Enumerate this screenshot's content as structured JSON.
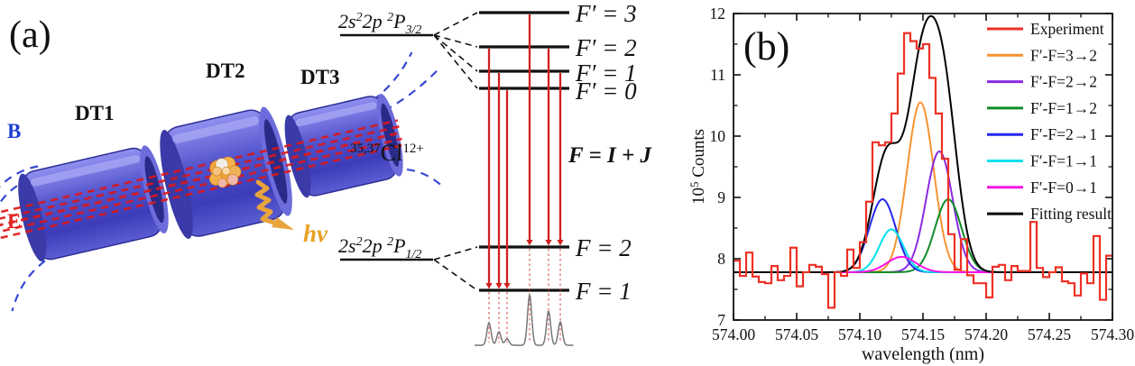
{
  "panel_a": {
    "label": "(a)",
    "drift_tube_labels": [
      "DT1",
      "DT2",
      "DT3"
    ],
    "b_field_label": "B",
    "e_field_label": "E",
    "photon_label": "hν",
    "ion": {
      "mass_numbers": "35,37",
      "element": "Cl",
      "charge": "12+"
    },
    "upper_term": {
      "t1": "2s",
      "s1": "2",
      "t2": "2p ",
      "s2": "2",
      "t3": "P",
      "s3": "3/2"
    },
    "lower_term": {
      "t1": "2s",
      "s1": "2",
      "t2": "2p ",
      "s2": "2",
      "t3": "P",
      "s3": "1/2"
    },
    "coupling_formula": "F = I + J",
    "upper_levels": [
      {
        "label": "F′ = 3"
      },
      {
        "label": "F′ = 2"
      },
      {
        "label": "F′ = 1"
      },
      {
        "label": "F′ = 0"
      }
    ],
    "lower_levels": [
      {
        "label": "F = 2"
      },
      {
        "label": "F = 1"
      }
    ],
    "transitions": [
      {
        "upper": 1,
        "lower": 1,
        "name": "F′=2 → F=1"
      },
      {
        "upper": 2,
        "lower": 1,
        "name": "F′=1 → F=1"
      },
      {
        "upper": 3,
        "lower": 1,
        "name": "F′=0 → F=1"
      },
      {
        "upper": 0,
        "lower": 0,
        "name": "F′=3 → F=2"
      },
      {
        "upper": 1,
        "lower": 0,
        "name": "F′=2 → F=2"
      },
      {
        "upper": 2,
        "lower": 0,
        "name": "F′=1 → F=2"
      }
    ],
    "mini_spectrum_peak_heights": [
      25,
      15,
      7,
      56,
      38,
      26
    ],
    "colors": {
      "tube_blue": "#5252cc",
      "beam_red": "#e01616",
      "field_blue": "#2b3fd0",
      "photon_amber": "#e8a43c"
    }
  },
  "panel_b": {
    "label": "(b)"
  },
  "chart_data": {
    "type": "line",
    "title": "",
    "xlabel": "wavelength (nm)",
    "ylabel_parts": {
      "base": "10",
      "exp": "5",
      "unit": " Counts"
    },
    "xlim": [
      574.0,
      574.3
    ],
    "ylim": [
      7,
      12
    ],
    "x_ticks": [
      "574.00",
      "574.05",
      "574.10",
      "574.15",
      "574.20",
      "574.25",
      "574.30"
    ],
    "y_ticks": [
      "7",
      "8",
      "9",
      "10",
      "11",
      "12"
    ],
    "grid": false,
    "legend_position": "top-right",
    "baseline_counts": 7.78,
    "histogram": {
      "name": "Experiment",
      "color": "#ed3124",
      "bin_start_nm": 574.0,
      "bin_width_nm": 0.005,
      "values": [
        7.97,
        7.72,
        8.1,
        7.71,
        7.62,
        7.6,
        7.88,
        7.65,
        7.72,
        8.18,
        7.55,
        7.78,
        7.9,
        7.87,
        7.75,
        7.2,
        7.78,
        7.72,
        8.15,
        7.85,
        8.27,
        8.93,
        9.9,
        9.85,
        9.9,
        10.37,
        11.02,
        11.68,
        11.55,
        11.43,
        11.5,
        10.95,
        10.37,
        9.63,
        8.4,
        7.82,
        8.32,
        7.73,
        7.6,
        7.6,
        7.37,
        7.87,
        7.9,
        7.65,
        7.88,
        7.8,
        7.8,
        8.6,
        7.85,
        7.7,
        7.78,
        7.86,
        7.63,
        7.6,
        7.4,
        7.76,
        7.6,
        8.37,
        7.33,
        8.05
      ]
    },
    "components": [
      {
        "name": "F′-F=3→2",
        "color": "#f79431",
        "center_nm": 574.148,
        "peak_counts": 10.55,
        "sigma_nm": 0.0105
      },
      {
        "name": "F′-F=2→2",
        "color": "#8a2be2",
        "center_nm": 574.163,
        "peak_counts": 9.75,
        "sigma_nm": 0.0105
      },
      {
        "name": "F′-F=1→2",
        "color": "#108c28",
        "center_nm": 574.17,
        "peak_counts": 8.97,
        "sigma_nm": 0.0105
      },
      {
        "name": "F′-F=2→1",
        "color": "#2626ee",
        "center_nm": 574.118,
        "peak_counts": 8.97,
        "sigma_nm": 0.0105
      },
      {
        "name": "F′-F=1→1",
        "color": "#00e0ee",
        "center_nm": 574.125,
        "peak_counts": 8.48,
        "sigma_nm": 0.0095
      },
      {
        "name": "F′-F=0→1",
        "color": "#f912e9",
        "center_nm": 574.133,
        "peak_counts": 8.03,
        "sigma_nm": 0.0115
      }
    ],
    "fit": {
      "name": "Fitting result",
      "color": "#000000",
      "is_sum_of_components_plus_baseline": true
    },
    "legend": [
      {
        "label": "Experiment",
        "color": "#ed3124"
      },
      {
        "label": "F′-F=3→2",
        "color": "#f79431"
      },
      {
        "label": "F′-F=2→2",
        "color": "#8a2be2"
      },
      {
        "label": "F′-F=1→2",
        "color": "#108c28"
      },
      {
        "label": "F′-F=2→1",
        "color": "#2626ee"
      },
      {
        "label": "F′-F=1→1",
        "color": "#00e0ee"
      },
      {
        "label": "F′-F=0→1",
        "color": "#f912e9"
      },
      {
        "label": "Fitting result",
        "color": "#000000"
      }
    ]
  }
}
